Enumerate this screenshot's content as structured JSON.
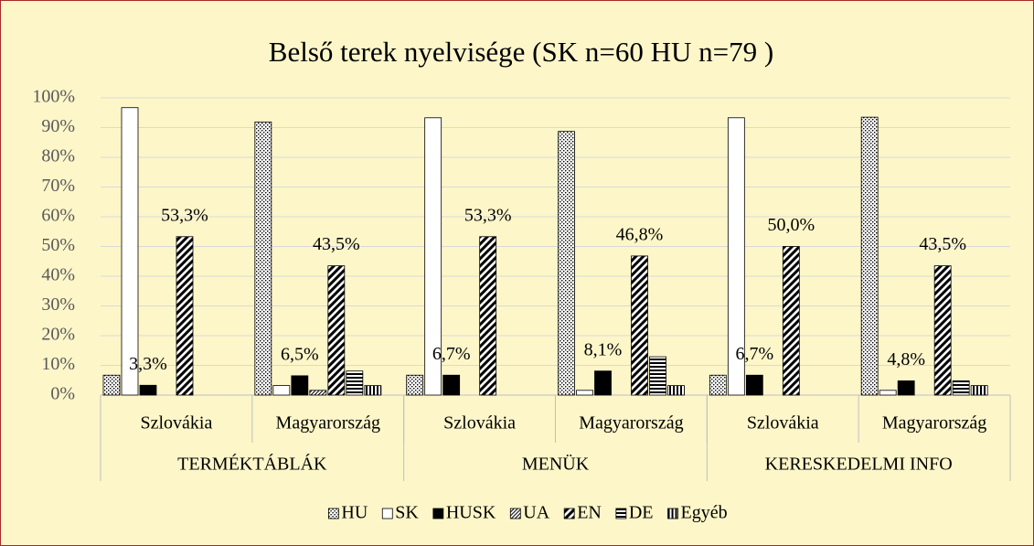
{
  "chart_data": {
    "type": "bar",
    "title": "Belső terek nyelvisége (SK n=60 HU n=79 )",
    "categories": [
      "Szlovákia",
      "Magyarország",
      "Szlovákia",
      "Magyarország",
      "Szlovákia",
      "Magyarország"
    ],
    "category_groups": [
      "TERMÉKTÁBLÁK",
      "MENÜK",
      "KERESKEDELMI INFO"
    ],
    "ylim": [
      0,
      100
    ],
    "yticks": [
      {
        "value": 0,
        "label": "0%"
      },
      {
        "value": 10,
        "label": "10%"
      },
      {
        "value": 20,
        "label": "20%"
      },
      {
        "value": 30,
        "label": "30%"
      },
      {
        "value": 40,
        "label": "40%"
      },
      {
        "value": 50,
        "label": "50%"
      },
      {
        "value": 60,
        "label": "60%"
      },
      {
        "value": 70,
        "label": "70%"
      },
      {
        "value": 80,
        "label": "80%"
      },
      {
        "value": 90,
        "label": "90%"
      },
      {
        "value": 100,
        "label": "100%"
      }
    ],
    "grid": true,
    "legend": "bottom",
    "series": [
      {
        "name": "HU",
        "color": "#000000",
        "pattern": "dots",
        "values": [
          6.7,
          91.9,
          6.7,
          88.7,
          6.7,
          93.5
        ]
      },
      {
        "name": "SK",
        "color": "#000000",
        "pattern": "none",
        "values": [
          96.7,
          3.2,
          93.3,
          1.6,
          93.3,
          1.6
        ]
      },
      {
        "name": "HUSK",
        "color": "#000000",
        "pattern": "solid",
        "values": [
          3.3,
          6.5,
          6.7,
          8.1,
          6.7,
          4.8
        ],
        "value_labels": [
          "3,3%",
          "6,5%",
          "6,7%",
          "8,1%",
          "6,7%",
          "4,8%"
        ]
      },
      {
        "name": "UA",
        "color": "#000000",
        "pattern": "fine-diagonal",
        "values": [
          0,
          1.6,
          0,
          0,
          0,
          0
        ]
      },
      {
        "name": "EN",
        "color": "#000000",
        "pattern": "diagonal",
        "values": [
          53.3,
          43.5,
          53.3,
          46.8,
          50.0,
          43.5
        ],
        "value_labels": [
          "53,3%",
          "43,5%",
          "53,3%",
          "46,8%",
          "50,0%",
          "43,5%"
        ]
      },
      {
        "name": "DE",
        "color": "#000000",
        "pattern": "horizontal",
        "values": [
          0,
          8.1,
          0,
          12.9,
          0,
          4.8
        ]
      },
      {
        "name": "Egyéb",
        "color": "#000000",
        "pattern": "vertical",
        "values": [
          0,
          3.2,
          0,
          3.2,
          0,
          3.2
        ]
      }
    ]
  }
}
